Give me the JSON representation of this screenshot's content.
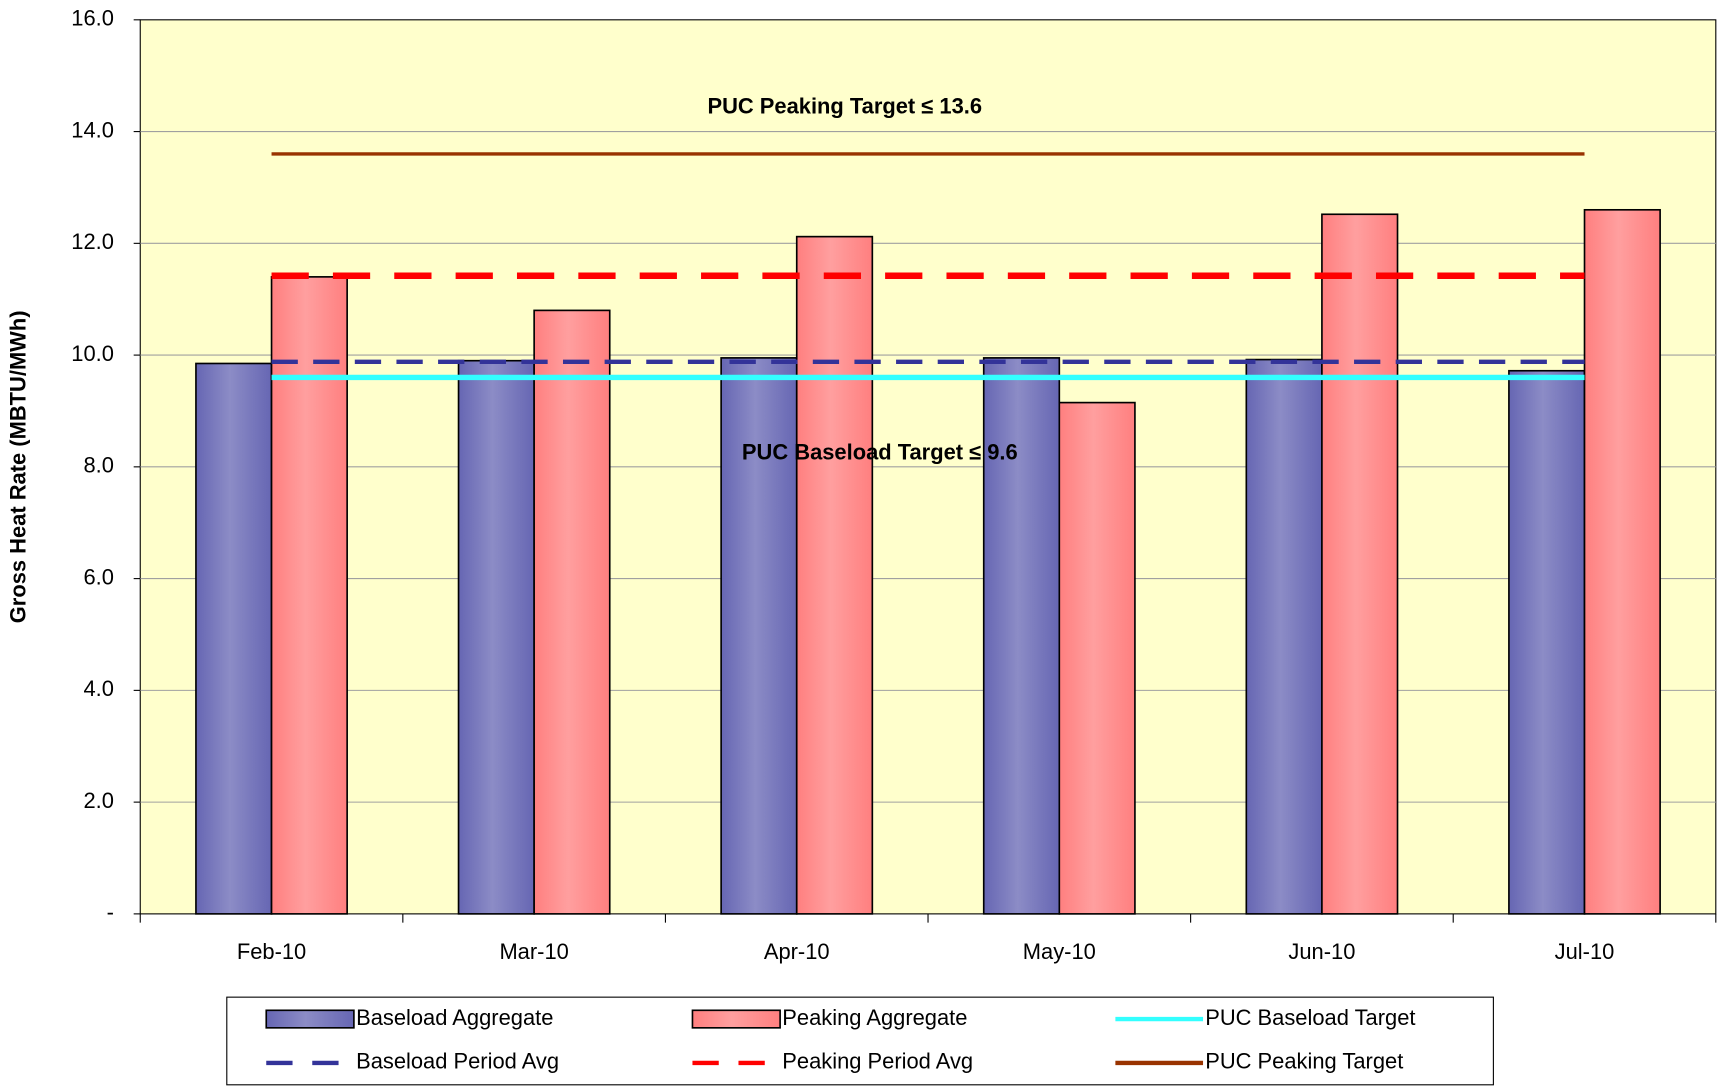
{
  "chart_data": {
    "type": "bar",
    "y_label": "Gross Heat Rate (MBTU/MWh)",
    "categories": [
      "Feb-10",
      "Mar-10",
      "Apr-10",
      "May-10",
      "Jun-10",
      "Jul-10"
    ],
    "series": [
      {
        "name": "Baseload Aggregate",
        "type": "bar",
        "color": "#6666b3",
        "values": [
          9.85,
          9.9,
          9.95,
          9.95,
          9.92,
          9.72
        ]
      },
      {
        "name": "Peaking Aggregate",
        "type": "bar",
        "color": "#ff7f7f",
        "values": [
          11.4,
          10.8,
          12.12,
          9.15,
          12.52,
          12.6
        ]
      },
      {
        "name": "PUC Baseload Target",
        "type": "line",
        "color": "#33ffff",
        "dash": false,
        "values": [
          9.6,
          9.6,
          9.6,
          9.6,
          9.6,
          9.6
        ]
      },
      {
        "name": "Baseload Period Avg",
        "type": "line",
        "color": "#333399",
        "dash": true,
        "values": [
          9.88,
          9.88,
          9.88,
          9.88,
          9.88,
          9.88
        ]
      },
      {
        "name": "Peaking Period Avg",
        "type": "line",
        "color": "#ff0000",
        "dash": true,
        "values": [
          11.42,
          11.42,
          11.42,
          11.42,
          11.42,
          11.42
        ]
      },
      {
        "name": "PUC Peaking Target",
        "type": "line",
        "color": "#993300",
        "dash": false,
        "values": [
          13.6,
          13.6,
          13.6,
          13.6,
          13.6,
          13.6
        ]
      }
    ],
    "annotations": [
      "PUC Peaking Target ≤ 13.6",
      "PUC Baseload Target ≤ 9.6"
    ],
    "ylim": [
      0,
      16
    ],
    "yticks": [
      {
        "value": 0,
        "label": "-"
      },
      {
        "value": 2,
        "label": "2.0"
      },
      {
        "value": 4,
        "label": "4.0"
      },
      {
        "value": 6,
        "label": "6.0"
      },
      {
        "value": 8,
        "label": "8.0"
      },
      {
        "value": 10,
        "label": "10.0"
      },
      {
        "value": 12,
        "label": "12.0"
      },
      {
        "value": 14,
        "label": "14.0"
      },
      {
        "value": 16,
        "label": "16.0"
      }
    ],
    "grid": true,
    "plot_background": "#ffffcc",
    "legend": "bottom"
  }
}
